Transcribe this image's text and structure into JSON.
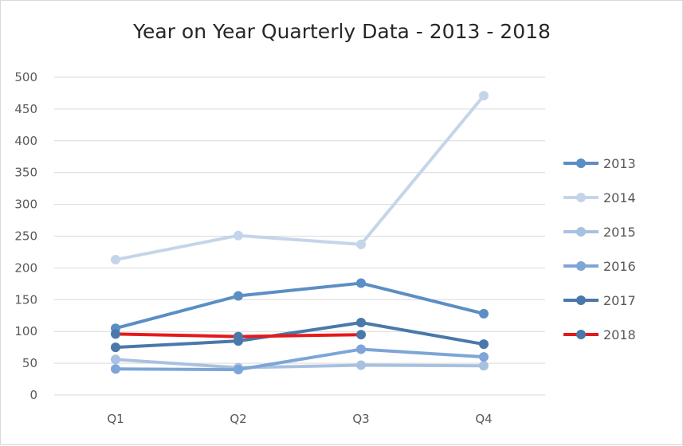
{
  "chart_data": {
    "type": "line",
    "title": "Year on Year Quarterly Data - 2013 - 2018",
    "xlabel": "",
    "ylabel": "",
    "categories": [
      "Q1",
      "Q2",
      "Q3",
      "Q4"
    ],
    "ylim": [
      0,
      500
    ],
    "yticks": [
      0,
      50,
      100,
      150,
      200,
      250,
      300,
      350,
      400,
      450,
      500
    ],
    "grid": "horizontal",
    "legend_position": "right",
    "series": [
      {
        "name": "2013",
        "color": "#5b8ec4",
        "values": [
          105,
          156,
          176,
          128
        ]
      },
      {
        "name": "2014",
        "color": "#c5d5e9",
        "values": [
          213,
          251,
          237,
          471
        ]
      },
      {
        "name": "2015",
        "color": "#a9c1e0",
        "values": [
          56,
          43,
          47,
          46
        ]
      },
      {
        "name": "2016",
        "color": "#7da5d7",
        "values": [
          41,
          40,
          72,
          60
        ]
      },
      {
        "name": "2017",
        "color": "#4a78aa",
        "values": [
          75,
          85,
          114,
          80
        ]
      },
      {
        "name": "2018",
        "color": "#e41a1c",
        "marker_color": "#4a78aa",
        "values": [
          96,
          92,
          95,
          null
        ]
      }
    ]
  }
}
